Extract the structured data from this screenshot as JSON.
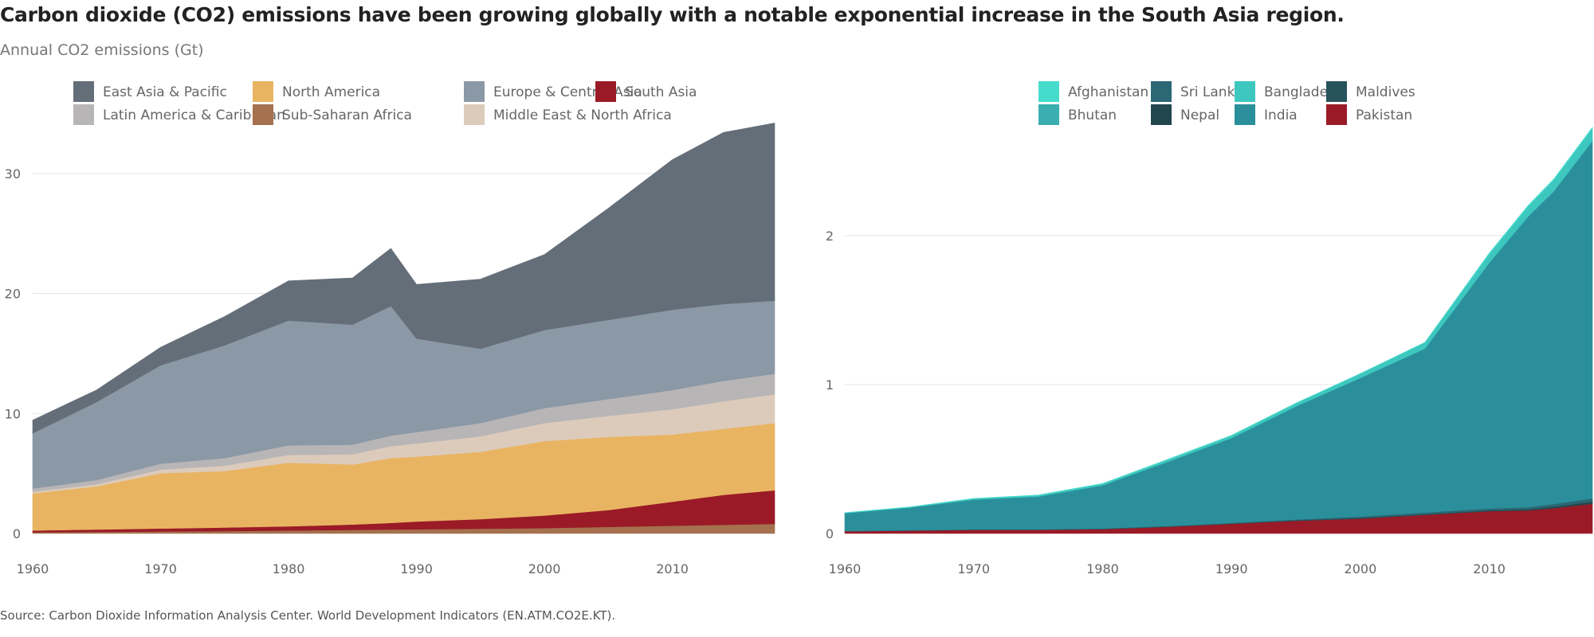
{
  "title": "Carbon dioxide (CO2) emissions have been growing globally with a notable exponential increase in the South Asia region.",
  "subtitle": "Annual CO2 emissions (Gt)",
  "source": "Source: Carbon Dioxide Information Analysis Center. World Development Indicators (EN.ATM.CO2E.KT).",
  "chart_data": [
    {
      "type": "area",
      "stacked": true,
      "grid": "horizontal",
      "legend_placement": "top",
      "xlim": [
        1960,
        2018
      ],
      "ylim": [
        0,
        34.5
      ],
      "x_ticks": [
        1960,
        1970,
        1980,
        1990,
        2000,
        2010
      ],
      "y_ticks": [
        0,
        10,
        20,
        30
      ],
      "x": [
        1960,
        1965,
        1970,
        1975,
        1980,
        1985,
        1988,
        1990,
        1995,
        2000,
        2005,
        2010,
        2014,
        2018
      ],
      "legend_order": [
        "East Asia & Pacific",
        "Latin America & Caribbean",
        "North America",
        "Sub-Saharan Africa",
        "Europe & Central Asia",
        "Middle East & North Africa",
        "South Asia"
      ],
      "series": [
        {
          "name": "Sub-Saharan Africa",
          "color": "#a5714e",
          "values": [
            0.1,
            0.13,
            0.17,
            0.2,
            0.25,
            0.3,
            0.33,
            0.35,
            0.4,
            0.45,
            0.55,
            0.65,
            0.72,
            0.8
          ]
        },
        {
          "name": "South Asia",
          "color": "#9a1b27",
          "values": [
            0.15,
            0.2,
            0.25,
            0.3,
            0.35,
            0.45,
            0.55,
            0.65,
            0.8,
            1.05,
            1.4,
            2.0,
            2.5,
            2.8
          ]
        },
        {
          "name": "North America",
          "color": "#e9b462",
          "values": [
            3.1,
            3.6,
            4.6,
            4.7,
            5.3,
            5.0,
            5.4,
            5.4,
            5.6,
            6.2,
            6.1,
            5.6,
            5.5,
            5.6
          ]
        },
        {
          "name": "Middle East & North Africa",
          "color": "#dccbbb",
          "values": [
            0.12,
            0.18,
            0.3,
            0.45,
            0.65,
            0.85,
            1.0,
            1.1,
            1.3,
            1.5,
            1.75,
            2.1,
            2.3,
            2.4
          ]
        },
        {
          "name": "Latin America & Caribbean",
          "color": "#b8b5b6",
          "values": [
            0.28,
            0.35,
            0.5,
            0.63,
            0.8,
            0.8,
            0.88,
            0.95,
            1.1,
            1.25,
            1.4,
            1.6,
            1.7,
            1.7
          ]
        },
        {
          "name": "Europe & Central Asia",
          "color": "#8b98a6",
          "values": [
            4.6,
            6.5,
            8.2,
            9.4,
            10.4,
            10.0,
            10.8,
            7.8,
            6.2,
            6.5,
            6.6,
            6.7,
            6.4,
            6.1
          ]
        },
        {
          "name": "East Asia & Pacific",
          "color": "#646e79",
          "values": [
            1.1,
            1.0,
            1.5,
            2.4,
            3.3,
            3.9,
            4.8,
            4.5,
            5.8,
            6.3,
            9.3,
            12.5,
            14.3,
            14.8
          ]
        }
      ]
    },
    {
      "type": "area",
      "stacked": true,
      "grid": "horizontal",
      "legend_placement": "top",
      "xlim": [
        1960,
        2018
      ],
      "ylim": [
        0,
        2.78
      ],
      "x_ticks": [
        1960,
        1970,
        1980,
        1990,
        2000,
        2010
      ],
      "y_ticks": [
        0,
        1,
        2
      ],
      "x": [
        1960,
        1965,
        1970,
        1975,
        1980,
        1985,
        1990,
        1995,
        2000,
        2005,
        2010,
        2013,
        2015,
        2018
      ],
      "legend_order": [
        "Afghanistan",
        "Bhutan",
        "Sri Lanka",
        "Nepal",
        "Bangladesh",
        "India",
        "Maldives",
        "Pakistan"
      ],
      "series": [
        {
          "name": "Pakistan",
          "color": "#9a1b27",
          "values": [
            0.015,
            0.02,
            0.025,
            0.025,
            0.03,
            0.045,
            0.065,
            0.085,
            0.1,
            0.125,
            0.15,
            0.155,
            0.17,
            0.2
          ]
        },
        {
          "name": "Maldives",
          "color": "#27545c",
          "values": [
            0,
            0,
            0,
            0,
            0,
            0.001,
            0.001,
            0.001,
            0.001,
            0.001,
            0.001,
            0.001,
            0.002,
            0.002
          ]
        },
        {
          "name": "Nepal",
          "color": "#22464d",
          "values": [
            0,
            0,
            0,
            0,
            0,
            0,
            0.001,
            0.002,
            0.003,
            0.003,
            0.004,
            0.006,
            0.008,
            0.012
          ]
        },
        {
          "name": "Sri Lanka",
          "color": "#2b6774",
          "values": [
            0.002,
            0.003,
            0.003,
            0.003,
            0.004,
            0.004,
            0.004,
            0.006,
            0.01,
            0.012,
            0.013,
            0.015,
            0.018,
            0.022
          ]
        },
        {
          "name": "India",
          "color": "#2b8f9b",
          "values": [
            0.12,
            0.15,
            0.2,
            0.22,
            0.29,
            0.43,
            0.57,
            0.76,
            0.93,
            1.1,
            1.65,
            1.95,
            2.1,
            2.4
          ]
        },
        {
          "name": "Bhutan",
          "color": "#3aaeb0",
          "values": [
            0,
            0,
            0,
            0,
            0,
            0,
            0,
            0,
            0.001,
            0.001,
            0.001,
            0.001,
            0.001,
            0.001
          ]
        },
        {
          "name": "Bangladesh",
          "color": "#3dc7bf",
          "values": [
            0.002,
            0.004,
            0.006,
            0.008,
            0.01,
            0.013,
            0.015,
            0.02,
            0.028,
            0.04,
            0.056,
            0.065,
            0.073,
            0.082
          ]
        },
        {
          "name": "Afghanistan",
          "color": "#46dccd",
          "values": [
            0.001,
            0.001,
            0.002,
            0.002,
            0.002,
            0.003,
            0.003,
            0.001,
            0.001,
            0.001,
            0.008,
            0.008,
            0.008,
            0.008
          ]
        }
      ]
    }
  ]
}
